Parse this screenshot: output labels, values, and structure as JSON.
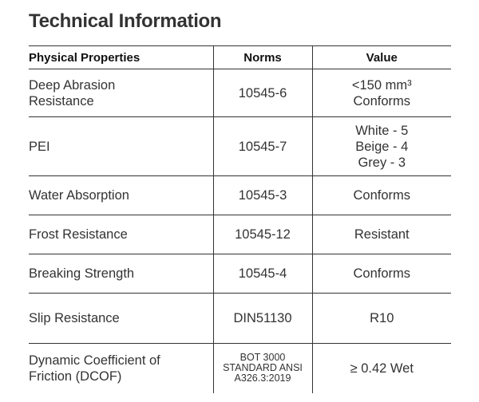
{
  "title": "Technical Information",
  "headers": {
    "property": "Physical Properties",
    "norms": "Norms",
    "value": "Value"
  },
  "rows": [
    {
      "property": [
        "Deep Abrasion",
        "Resistance"
      ],
      "norms": [
        "10545-6"
      ],
      "value": [
        "<150 mm³",
        "Conforms"
      ]
    },
    {
      "property": [
        "PEI"
      ],
      "norms": [
        "10545-7"
      ],
      "value": [
        "White - 5",
        "Beige - 4",
        "Grey - 3"
      ]
    },
    {
      "property": [
        "Water Absorption"
      ],
      "norms": [
        "10545-3"
      ],
      "value": [
        "Conforms"
      ]
    },
    {
      "property": [
        "Frost Resistance"
      ],
      "norms": [
        "10545-12"
      ],
      "value": [
        "Resistant"
      ]
    },
    {
      "property": [
        "Breaking Strength"
      ],
      "norms": [
        "10545-4"
      ],
      "value": [
        "Conforms"
      ]
    },
    {
      "property": [
        "Slip Resistance"
      ],
      "norms": [
        "DIN51130"
      ],
      "value": [
        "R10"
      ]
    },
    {
      "property": [
        "Dynamic Coefficient of",
        "Friction (DCOF)"
      ],
      "norms": [
        "BOT 3000",
        "STANDARD ANSI",
        "A326.3:2019"
      ],
      "value": [
        "≥ 0.42 Wet"
      ]
    }
  ]
}
